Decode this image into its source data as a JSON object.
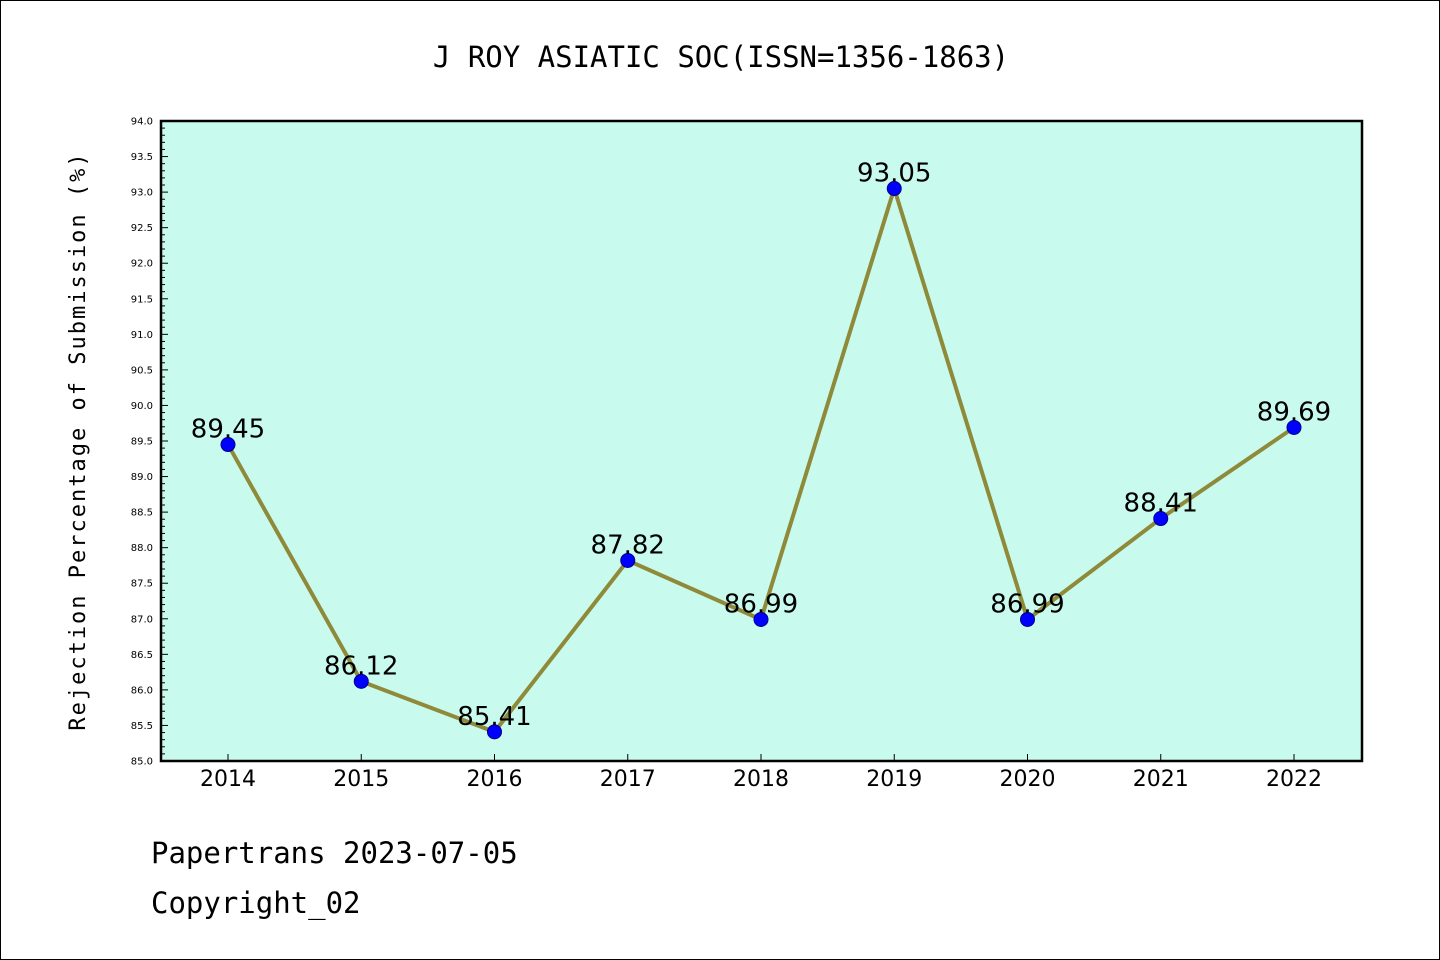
{
  "colors": {
    "plot_background": "#c8fbee",
    "line": "#8f8a3a",
    "marker": "#0000ff",
    "axis": "#000000",
    "text": "#000000"
  },
  "chart_data": {
    "type": "line",
    "title": "J ROY ASIATIC SOC(ISSN=1356-1863)",
    "xlabel": "",
    "ylabel": "Rejection Percentage of Submission (%)",
    "categories": [
      "2014",
      "2015",
      "2016",
      "2017",
      "2018",
      "2019",
      "2020",
      "2021",
      "2022"
    ],
    "values": [
      89.45,
      86.12,
      85.41,
      87.82,
      86.99,
      93.05,
      86.99,
      88.41,
      89.69
    ],
    "data_labels": [
      "89.45",
      "86.12",
      "85.41",
      "87.82",
      "86.99",
      "93.05",
      "86.99",
      "88.41",
      "89.69"
    ],
    "ylim": [
      85.0,
      94.0
    ],
    "y_ticks": [
      "85.0",
      "85.5",
      "86.0",
      "86.5",
      "87.0",
      "87.5",
      "88.0",
      "88.5",
      "89.0",
      "89.5",
      "90.0",
      "90.5",
      "91.0",
      "91.5",
      "92.0",
      "92.5",
      "93.0",
      "93.5",
      "94.0"
    ],
    "grid": false,
    "marker": "circle"
  },
  "footer": {
    "line1": "Papertrans 2023-07-05",
    "line2": "Copyright_02"
  }
}
